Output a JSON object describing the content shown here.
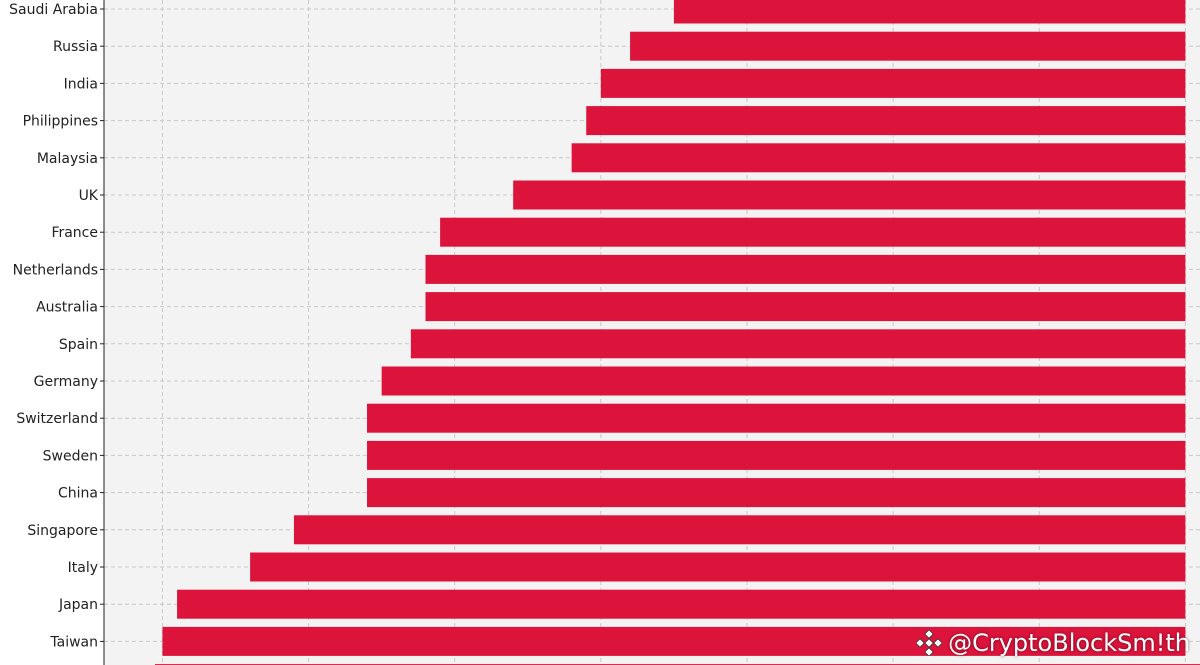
{
  "chart_data": {
    "type": "bar",
    "orientation": "horizontal",
    "categories": [
      "Saudi Arabia",
      "Russia",
      "India",
      "Philippines",
      "Malaysia",
      "UK",
      "France",
      "Netherlands",
      "Australia",
      "Spain",
      "Germany",
      "Switzerland",
      "Sweden",
      "China",
      "Singapore",
      "Italy",
      "Japan",
      "Taiwan"
    ],
    "values": [
      -3.5,
      -3.8,
      -4.0,
      -4.1,
      -4.2,
      -4.6,
      -5.1,
      -5.2,
      -5.2,
      -5.3,
      -5.5,
      -5.6,
      -5.6,
      -5.6,
      -6.1,
      -6.4,
      -6.9,
      -7.0
    ],
    "value_labels": [
      "",
      "",
      "",
      "",
      "",
      "",
      "",
      "",
      "",
      "",
      "",
      "",
      "",
      "",
      "",
      "",
      "",
      ""
    ],
    "xlim": [
      -7.4,
      0.1
    ],
    "grid": true,
    "bar_color": "#dc143c",
    "background_color": "#f3f3f3",
    "grid_color": "#c8c8c8"
  },
  "watermark": {
    "text": "@CryptoBlockSm!th",
    "icon": "binance-diamond-icon"
  }
}
